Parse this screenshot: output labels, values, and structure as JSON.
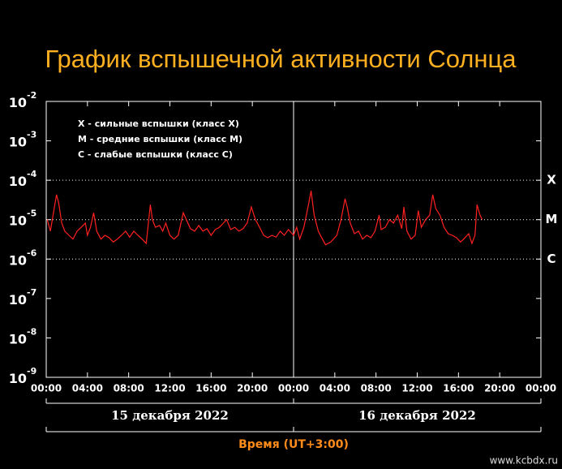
{
  "chart_data": {
    "type": "line",
    "title": "График вспышечной активности Солнца",
    "xlabel": "Время (UT+3:00)",
    "watermark": "www.kcbdx.ru",
    "legend_lines": [
      "X - сильные вспышки (класс X)",
      "M - средние вспышки (класс M)",
      "C - слабые вспышки (класс C)"
    ],
    "dates": [
      {
        "label": "15 декабря 2022",
        "start": 0,
        "end": 24
      },
      {
        "label": "16 декабря 2022",
        "start": 24,
        "end": 48
      }
    ],
    "yscale": "log",
    "ylim": [
      1e-09,
      0.01
    ],
    "yticks": [
      {
        "value": 1e-09,
        "label": "10",
        "exponent": "-9"
      },
      {
        "value": 1e-08,
        "label": "10",
        "exponent": "-8"
      },
      {
        "value": 1e-07,
        "label": "10",
        "exponent": "-7"
      },
      {
        "value": 1e-06,
        "label": "10",
        "exponent": "-6"
      },
      {
        "value": 1e-05,
        "label": "10",
        "exponent": "-5"
      },
      {
        "value": 0.0001,
        "label": "10",
        "exponent": "-4"
      },
      {
        "value": 0.001,
        "label": "10",
        "exponent": "-3"
      },
      {
        "value": 0.01,
        "label": "10",
        "exponent": "-2"
      }
    ],
    "levels": [
      {
        "value": 0.0001,
        "label": "X"
      },
      {
        "value": 1e-05,
        "label": "M"
      },
      {
        "value": 1e-06,
        "label": "C"
      }
    ],
    "divider": 24,
    "xlim": [
      0,
      48
    ],
    "xticks": [
      {
        "value": 0,
        "label": "00:00"
      },
      {
        "value": 4,
        "label": "04:00"
      },
      {
        "value": 8,
        "label": "08:00"
      },
      {
        "value": 12,
        "label": "12:00"
      },
      {
        "value": 16,
        "label": "16:00"
      },
      {
        "value": 20,
        "label": "20:00"
      },
      {
        "value": 24,
        "label": "00:00"
      },
      {
        "value": 28,
        "label": "04:00"
      },
      {
        "value": 32,
        "label": "08:00"
      },
      {
        "value": 36,
        "label": "12:00"
      },
      {
        "value": 40,
        "label": "16:00"
      },
      {
        "value": 44,
        "label": "20:00"
      },
      {
        "value": 48,
        "label": "00:00"
      }
    ],
    "x": [
      0.1,
      0.4,
      1.0,
      1.2,
      1.5,
      1.8,
      2.2,
      2.6,
      3.0,
      3.4,
      3.8,
      4.0,
      4.3,
      4.6,
      4.9,
      5.3,
      5.7,
      6.1,
      6.5,
      6.9,
      7.3,
      7.7,
      8.1,
      8.5,
      8.9,
      9.3,
      9.7,
      10.1,
      10.3,
      10.6,
      11.0,
      11.3,
      11.6,
      12.0,
      12.4,
      12.8,
      13.3,
      13.6,
      14.0,
      14.4,
      14.8,
      15.2,
      15.6,
      16.0,
      16.4,
      16.8,
      17.2,
      17.5,
      17.9,
      18.3,
      18.7,
      19.1,
      19.5,
      19.9,
      20.3,
      20.7,
      21.1,
      21.5,
      21.9,
      22.3,
      22.7,
      23.1,
      23.5,
      24.0,
      24.3,
      24.6,
      25.0,
      25.4,
      25.7,
      26.0,
      26.4,
      26.8,
      27.1,
      27.6,
      28.2,
      28.6,
      29.0,
      29.2,
      29.5,
      29.9,
      30.3,
      30.7,
      31.1,
      31.5,
      31.9,
      32.3,
      32.5,
      32.9,
      33.3,
      33.7,
      34.1,
      34.5,
      34.7,
      35.0,
      35.4,
      35.8,
      36.1,
      36.4,
      36.8,
      37.2,
      37.5,
      37.8,
      38.2,
      38.6,
      39.0,
      39.4,
      39.8,
      40.2,
      40.5,
      41.0,
      41.3,
      41.6,
      41.8,
      42.1,
      42.3
    ],
    "series": [
      {
        "color": "#ff2020",
        "values": [
          1e-05,
          5.1e-06,
          4.3e-05,
          2.7e-05,
          8.2e-06,
          5.1e-06,
          4e-06,
          3.2e-06,
          5.1e-06,
          6.4e-06,
          8.2e-06,
          4e-06,
          6.4e-06,
          1.5e-05,
          5.1e-06,
          3.2e-06,
          4e-06,
          3.5e-06,
          2.7e-06,
          3.2e-06,
          4e-06,
          5.1e-06,
          3.6e-06,
          5.1e-06,
          4e-06,
          3.2e-06,
          2.5e-06,
          2.4e-05,
          1e-05,
          6.4e-06,
          7.1e-06,
          5.1e-06,
          8.2e-06,
          4e-06,
          3.2e-06,
          4e-06,
          1.5e-05,
          1e-05,
          5.9e-06,
          5.1e-06,
          7.1e-06,
          5.1e-06,
          5.9e-06,
          4e-06,
          5.6e-06,
          6.4e-06,
          8.2e-06,
          1e-05,
          5.6e-06,
          6.4e-06,
          5.1e-06,
          5.9e-06,
          8.2e-06,
          2.1e-05,
          1e-05,
          6.4e-06,
          4e-06,
          3.5e-06,
          4e-06,
          3.6e-06,
          5.1e-06,
          4e-06,
          5.6e-06,
          4e-06,
          6.4e-06,
          3.2e-06,
          6.4e-06,
          2.1e-05,
          5.4e-05,
          1.3e-05,
          5.1e-06,
          3.2e-06,
          2.3e-06,
          2.7e-06,
          4e-06,
          1e-05,
          3.4e-05,
          2.1e-05,
          8.2e-06,
          4.4e-06,
          5.1e-06,
          3.2e-06,
          4e-06,
          3.5e-06,
          5.1e-06,
          1.3e-05,
          5.6e-06,
          6.4e-06,
          1e-05,
          8.2e-06,
          1.3e-05,
          5.9e-06,
          2.1e-05,
          5.1e-06,
          3.2e-06,
          4e-06,
          1.7e-05,
          6.4e-06,
          1e-05,
          1.3e-05,
          4.3e-05,
          1.9e-05,
          1.3e-05,
          6.4e-06,
          4.4e-06,
          4e-06,
          3.5e-06,
          2.7e-06,
          3.2e-06,
          4.4e-06,
          2.5e-06,
          4e-06,
          2.4e-05,
          1.3e-05,
          1e-05
        ]
      }
    ]
  }
}
